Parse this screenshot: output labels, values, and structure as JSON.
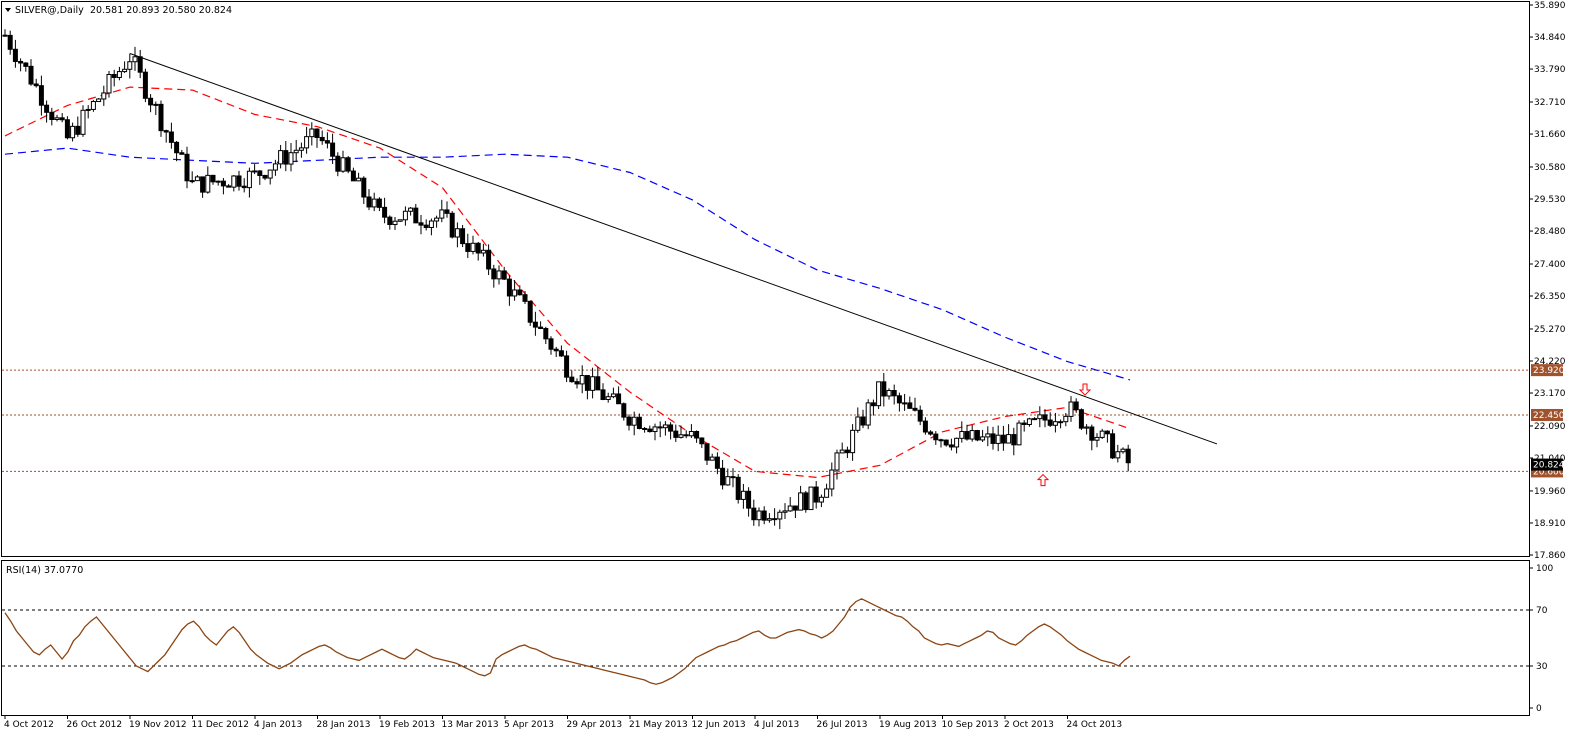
{
  "chart_data": {
    "type": "candlestick",
    "symbol_label": "SILVER@,Daily",
    "ohlc_label": "20.581 20.893 20.580 20.824",
    "y_axis": {
      "ylim": [
        17.86,
        35.89
      ],
      "tick_labels": [
        "35.890",
        "34.840",
        "33.790",
        "32.710",
        "31.660",
        "30.580",
        "29.530",
        "28.480",
        "27.400",
        "26.350",
        "25.270",
        "24.220",
        "23.170",
        "22.090",
        "21.040",
        "19.960",
        "18.910",
        "17.860"
      ]
    },
    "x_axis": {
      "tick_labels": [
        "4 Oct 2012",
        "26 Oct 2012",
        "19 Nov 2012",
        "11 Dec 2012",
        "4 Jan 2013",
        "28 Jan 2013",
        "19 Feb 2013",
        "13 Mar 2013",
        "5 Apr 2013",
        "29 Apr 2013",
        "21 May 2013",
        "12 Jun 2013",
        "4 Jul 2013",
        "26 Jul 2013",
        "19 Aug 2013",
        "10 Sep 2013",
        "2 Oct 2013",
        "24 Oct 2013"
      ]
    },
    "price_path_approx": [
      {
        "date": "4 Oct 2012",
        "close": 34.9
      },
      {
        "date": "26 Oct 2012",
        "close": 31.5
      },
      {
        "date": "19 Nov 2012",
        "close": 34.2
      },
      {
        "date": "11 Dec 2012",
        "close": 30.0
      },
      {
        "date": "4 Jan 2013",
        "close": 30.3
      },
      {
        "date": "28 Jan 2013",
        "close": 31.6
      },
      {
        "date": "19 Feb 2013",
        "close": 29.0
      },
      {
        "date": "13 Mar 2013",
        "close": 28.9
      },
      {
        "date": "5 Apr 2013",
        "close": 26.8
      },
      {
        "date": "29 Apr 2013",
        "close": 24.0
      },
      {
        "date": "21 May 2013",
        "close": 22.4
      },
      {
        "date": "12 Jun 2013",
        "close": 21.7
      },
      {
        "date": "4 Jul 2013",
        "close": 19.2
      },
      {
        "date": "26 Jul 2013",
        "close": 19.8
      },
      {
        "date": "19 Aug 2013",
        "close": 23.3
      },
      {
        "date": "10 Sep 2013",
        "close": 21.7
      },
      {
        "date": "2 Oct 2013",
        "close": 21.6
      },
      {
        "date": "24 Oct 2013",
        "close": 22.7
      },
      {
        "date": "8 Nov 2013",
        "close": 20.824
      }
    ],
    "horizontal_levels": [
      {
        "value": 23.92,
        "label": "23.920",
        "color": "#a0522d",
        "style": "dotted"
      },
      {
        "value": 22.45,
        "label": "22.450",
        "color": "#a0522d",
        "style": "dotted"
      },
      {
        "value": 20.6,
        "label": "20.600",
        "color": "#a0522d",
        "style": "dotted"
      }
    ],
    "current_price_tag": {
      "value": 20.824,
      "label": "20.824",
      "color": "#000000"
    },
    "trendline": {
      "color": "#000000",
      "points": [
        {
          "date": "19 Nov 2012",
          "value": 34.3
        },
        {
          "date": "15 Nov 2013",
          "value": 21.5
        }
      ]
    },
    "moving_averages": [
      {
        "color": "#ff0000",
        "style": "dashed",
        "values": [
          31.6,
          32.6,
          33.2,
          33.1,
          32.3,
          31.9,
          31.2,
          29.9,
          27.2,
          24.8,
          23.2,
          21.8,
          20.6,
          20.4,
          20.8,
          21.9,
          22.4,
          22.7,
          22.0
        ]
      },
      {
        "color": "#0000ff",
        "style": "dashed",
        "values": [
          31.0,
          31.2,
          30.9,
          30.8,
          30.7,
          30.8,
          30.9,
          30.9,
          31.0,
          30.9,
          30.4,
          29.5,
          28.2,
          27.2,
          26.6,
          25.9,
          25.0,
          24.2,
          23.6
        ]
      }
    ],
    "arrows": [
      {
        "direction": "up",
        "date": "7 Oct 2013",
        "value": 20.3,
        "color": "#ff0000"
      },
      {
        "direction": "down",
        "date": "28 Oct 2013",
        "value": 23.3,
        "color": "#ff0000"
      }
    ],
    "rsi": {
      "label": "RSI(14) 37.0770",
      "ylim": [
        0,
        100
      ],
      "tick_labels": [
        "100",
        "70",
        "30",
        "0"
      ],
      "levels": [
        70,
        30
      ],
      "color": "#8b4513",
      "values": [
        68,
        62,
        55,
        50,
        45,
        40,
        38,
        42,
        45,
        40,
        35,
        40,
        48,
        52,
        58,
        62,
        65,
        60,
        55,
        50,
        45,
        40,
        35,
        30,
        28,
        26,
        30,
        34,
        38,
        44,
        50,
        56,
        60,
        62,
        58,
        52,
        48,
        45,
        50,
        55,
        58,
        54,
        48,
        42,
        38,
        35,
        32,
        30,
        28,
        30,
        32,
        35,
        38,
        40,
        42,
        44,
        45,
        43,
        40,
        38,
        36,
        35,
        34,
        36,
        38,
        40,
        42,
        40,
        38,
        36,
        35,
        38,
        42,
        40,
        38,
        36,
        35,
        34,
        33,
        32,
        30,
        28,
        26,
        24,
        23,
        25,
        35,
        38,
        40,
        42,
        44,
        45,
        43,
        42,
        40,
        38,
        36,
        35,
        34,
        33,
        32,
        31,
        30,
        29,
        28,
        27,
        26,
        25,
        24,
        23,
        22,
        21,
        20,
        18,
        17,
        18,
        20,
        22,
        25,
        28,
        32,
        36,
        38,
        40,
        42,
        44,
        45,
        47,
        48,
        50,
        52,
        54,
        55,
        52,
        50,
        50,
        52,
        54,
        55,
        56,
        55,
        53,
        52,
        50,
        52,
        55,
        60,
        65,
        72,
        76,
        78,
        76,
        74,
        72,
        70,
        68,
        66,
        65,
        62,
        58,
        55,
        50,
        48,
        46,
        45,
        46,
        45,
        44,
        46,
        48,
        50,
        52,
        55,
        54,
        50,
        48,
        46,
        45,
        48,
        52,
        55,
        58,
        60,
        58,
        55,
        52,
        48,
        45,
        42,
        40,
        38,
        36,
        34,
        33,
        32,
        30,
        34,
        37
      ]
    }
  }
}
